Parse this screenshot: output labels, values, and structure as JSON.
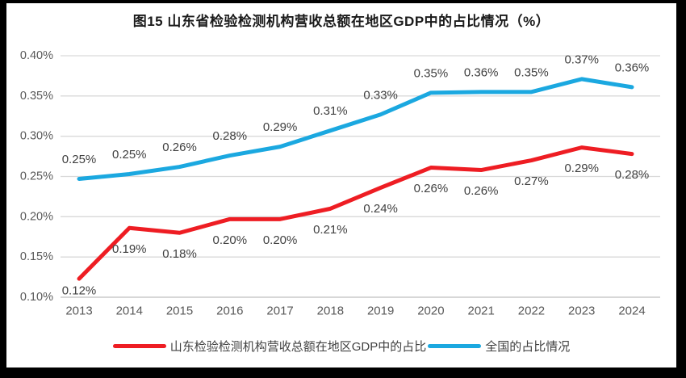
{
  "chart_data": {
    "type": "line",
    "title": "图15  山东省检验检测机构营收总额在地区GDP中的占比情况（%）",
    "categories": [
      "2013",
      "2014",
      "2015",
      "2016",
      "2017",
      "2018",
      "2019",
      "2020",
      "2021",
      "2022",
      "2023",
      "2024"
    ],
    "series": [
      {
        "name": "山东检验检测机构营收总额在地区GDP中的占比",
        "color": "#ee1d23",
        "values": [
          0.123,
          0.186,
          0.18,
          0.197,
          0.197,
          0.21,
          0.236,
          0.261,
          0.258,
          0.27,
          0.286,
          0.278
        ],
        "labels": [
          "0.12%",
          "0.19%",
          "0.18%",
          "0.20%",
          "0.20%",
          "0.21%",
          "0.24%",
          "0.26%",
          "0.26%",
          "0.27%",
          "0.29%",
          "0.28%"
        ],
        "label_dy": 26
      },
      {
        "name": "全国的占比情况",
        "color": "#1ba8e0",
        "values": [
          0.247,
          0.253,
          0.262,
          0.276,
          0.287,
          0.307,
          0.327,
          0.354,
          0.355,
          0.355,
          0.371,
          0.361
        ],
        "labels": [
          "0.25%",
          "0.25%",
          "0.26%",
          "0.28%",
          "0.29%",
          "0.31%",
          "0.33%",
          "0.35%",
          "0.36%",
          "0.35%",
          "0.37%",
          "0.36%"
        ],
        "label_dy": -24
      }
    ],
    "ylim": [
      0.1,
      0.4
    ],
    "yticks": [
      "0.10%",
      "0.15%",
      "0.20%",
      "0.25%",
      "0.30%",
      "0.35%",
      "0.40%"
    ],
    "grid": true,
    "legend_position": "bottom",
    "colors": {
      "gridline": "#d9d9d9",
      "axis_line": "#bfbfbf",
      "tick_text": "#595959",
      "data_label_text": "#404040"
    }
  }
}
